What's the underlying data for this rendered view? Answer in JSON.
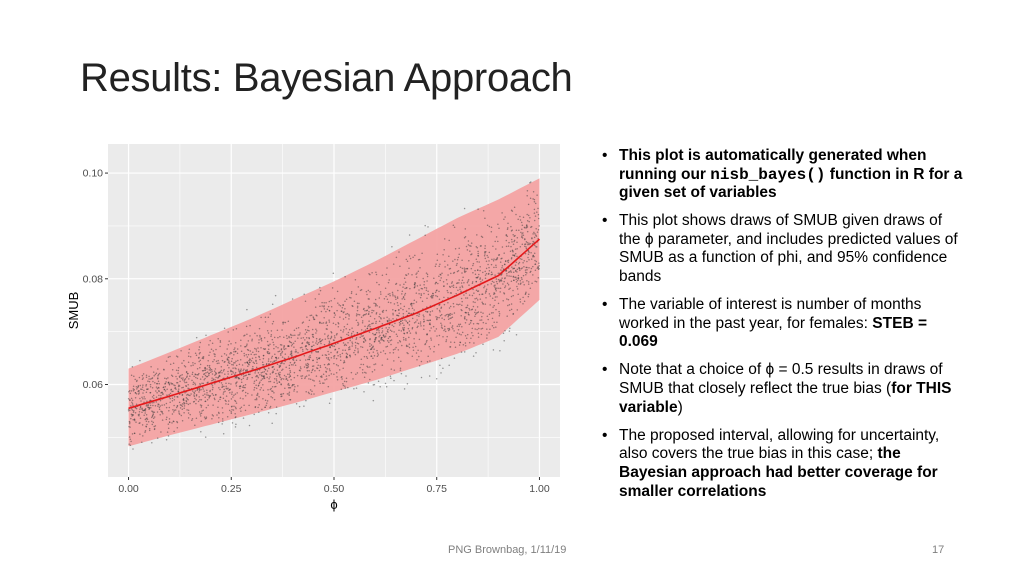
{
  "slide": {
    "title": "Results: Bayesian Approach",
    "footer": "PNG Brownbag, 1/11/19",
    "page_number": "17"
  },
  "bullets": [
    {
      "parts": [
        {
          "text": "This plot is automatically generated when running our ",
          "style": "b"
        },
        {
          "text": "nisb_bayes()",
          "style": "mono"
        },
        {
          "text": " function in R for a given set of variables",
          "style": "b"
        }
      ]
    },
    {
      "parts": [
        {
          "text": "This plot shows draws of SMUB given draws of the ϕ parameter, and includes predicted values of SMUB as a function of phi, and 95% confidence bands",
          "style": ""
        }
      ]
    },
    {
      "parts": [
        {
          "text": "The variable of interest is number of months worked in the past year, for females: ",
          "style": ""
        },
        {
          "text": "STEB = 0.069",
          "style": "b"
        }
      ]
    },
    {
      "parts": [
        {
          "text": "Note that a choice of ϕ = 0.5 results in draws of SMUB that closely reflect the true bias (",
          "style": ""
        },
        {
          "text": "for THIS variable",
          "style": "b"
        },
        {
          "text": ")",
          "style": ""
        }
      ]
    },
    {
      "parts": [
        {
          "text": "The proposed interval, allowing for uncertainty, also covers the true bias in this case; ",
          "style": ""
        },
        {
          "text": "the Bayesian approach had better coverage for smaller correlations",
          "style": "b"
        }
      ]
    }
  ],
  "colors": {
    "panel_bg": "#ebebeb",
    "grid": "#ffffff",
    "band": "#f4a3a3",
    "line": "#e31a1c",
    "points": "#3a3a3a"
  },
  "chart_data": {
    "type": "scatter",
    "title": "",
    "xlabel": "ϕ",
    "ylabel": "SMUB",
    "xlim": [
      -0.05,
      1.05
    ],
    "ylim": [
      0.0425,
      0.1055
    ],
    "x_ticks": [
      0.0,
      0.25,
      0.5,
      0.75,
      1.0
    ],
    "x_tick_labels": [
      "0.00",
      "0.25",
      "0.50",
      "0.75",
      "1.00"
    ],
    "y_ticks": [
      0.06,
      0.08,
      0.1
    ],
    "y_tick_labels": [
      "0.06",
      "0.08",
      "0.10"
    ],
    "grid": true,
    "legend": "none",
    "fit_line": {
      "name": "",
      "x": [
        0.0,
        0.1,
        0.2,
        0.3,
        0.4,
        0.5,
        0.6,
        0.7,
        0.8,
        0.9,
        1.0
      ],
      "y": [
        0.0555,
        0.0578,
        0.0602,
        0.0626,
        0.0651,
        0.0678,
        0.0706,
        0.0735,
        0.0769,
        0.0806,
        0.0875
      ]
    },
    "band_upper": {
      "x": [
        0.0,
        0.1,
        0.2,
        0.3,
        0.4,
        0.5,
        0.6,
        0.7,
        0.8,
        0.9,
        1.0
      ],
      "y": [
        0.063,
        0.0661,
        0.0693,
        0.0725,
        0.076,
        0.0795,
        0.0833,
        0.0874,
        0.0915,
        0.095,
        0.099
      ]
    },
    "band_lower": {
      "x": [
        0.0,
        0.1,
        0.2,
        0.3,
        0.4,
        0.5,
        0.6,
        0.7,
        0.8,
        0.9,
        1.0
      ],
      "y": [
        0.0483,
        0.0504,
        0.0524,
        0.0544,
        0.0564,
        0.0586,
        0.0608,
        0.0633,
        0.0658,
        0.069,
        0.076
      ]
    },
    "points": {
      "description_count": 3000,
      "x_range": [
        0.0,
        1.0
      ],
      "note": "dense draws of SMUB scattered within and slightly beyond the band around the fitted line"
    }
  }
}
